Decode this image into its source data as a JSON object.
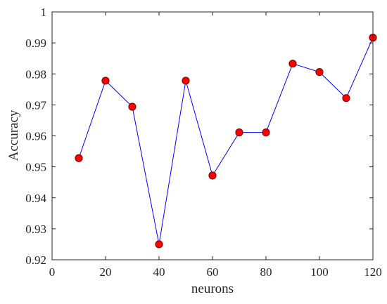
{
  "chart_data": {
    "type": "line",
    "title": "",
    "xlabel": "neurons",
    "ylabel": "Accuracy",
    "xlim": [
      0,
      120
    ],
    "ylim": [
      0.92,
      1.0
    ],
    "xticks": [
      0,
      20,
      40,
      60,
      80,
      100,
      120
    ],
    "xtick_labels": [
      "0",
      "20",
      "40",
      "60",
      "80",
      "100",
      "120"
    ],
    "yticks": [
      0.92,
      0.93,
      0.94,
      0.95,
      0.96,
      0.97,
      0.98,
      0.99,
      1.0
    ],
    "ytick_labels": [
      "0.92",
      "0.93",
      "0.94",
      "0.95",
      "0.96",
      "0.97",
      "0.98",
      "0.99",
      "1"
    ],
    "grid": false,
    "series": [
      {
        "x": [
          10,
          20,
          30,
          40,
          50,
          60,
          70,
          80,
          90,
          100,
          110,
          120
        ],
        "y": [
          0.9528,
          0.9778,
          0.9694,
          0.925,
          0.9778,
          0.9472,
          0.9611,
          0.9611,
          0.9833,
          0.9806,
          0.9722,
          0.9917
        ],
        "line_color": "#0000ff",
        "marker_color": "#ff0000"
      }
    ]
  }
}
